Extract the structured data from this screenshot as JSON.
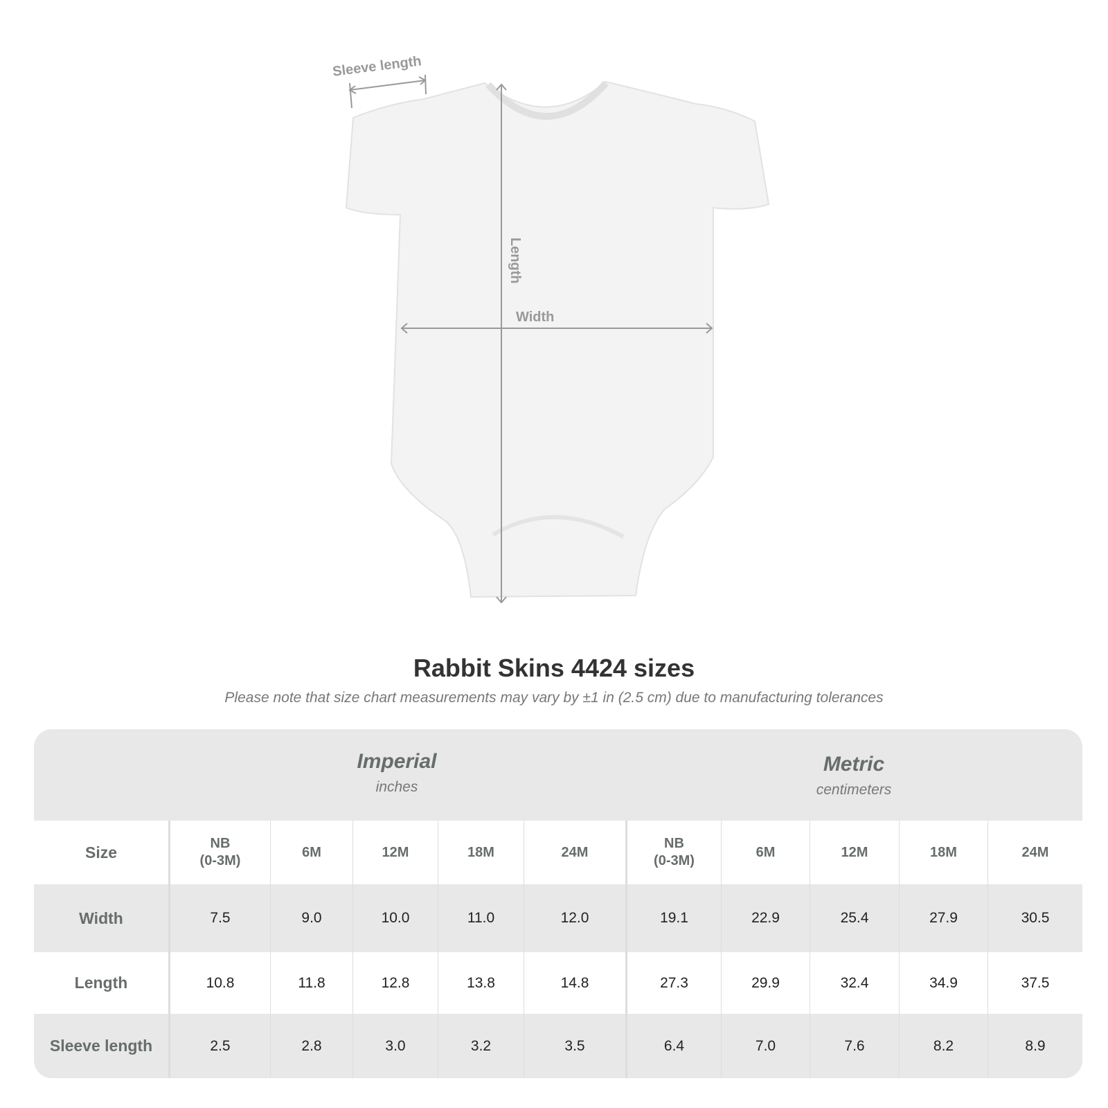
{
  "diagram": {
    "sleeve_label": "Sleeve length",
    "length_label": "Length",
    "width_label": "Width"
  },
  "title": "Rabbit Skins 4424 sizes",
  "subtitle": "Please note that size chart measurements may vary by ±1 in (2.5 cm) due to manufacturing tolerances",
  "table": {
    "imperial": {
      "heading": "Imperial",
      "unit": "inches"
    },
    "metric": {
      "heading": "Metric",
      "unit": "centimeters"
    },
    "size_label": "Size",
    "sizes": [
      "NB\n(0-3M)",
      "6M",
      "12M",
      "18M",
      "24M"
    ],
    "rows": [
      {
        "label": "Width",
        "imperial": [
          "7.5",
          "9.0",
          "10.0",
          "11.0",
          "12.0"
        ],
        "metric": [
          "19.1",
          "22.9",
          "25.4",
          "27.9",
          "30.5"
        ]
      },
      {
        "label": "Length",
        "imperial": [
          "10.8",
          "11.8",
          "12.8",
          "13.8",
          "14.8"
        ],
        "metric": [
          "27.3",
          "29.9",
          "32.4",
          "34.9",
          "37.5"
        ]
      },
      {
        "label": "Sleeve length",
        "imperial": [
          "2.5",
          "2.8",
          "3.0",
          "3.2",
          "3.5"
        ],
        "metric": [
          "6.4",
          "7.0",
          "7.6",
          "8.2",
          "8.9"
        ]
      }
    ]
  }
}
